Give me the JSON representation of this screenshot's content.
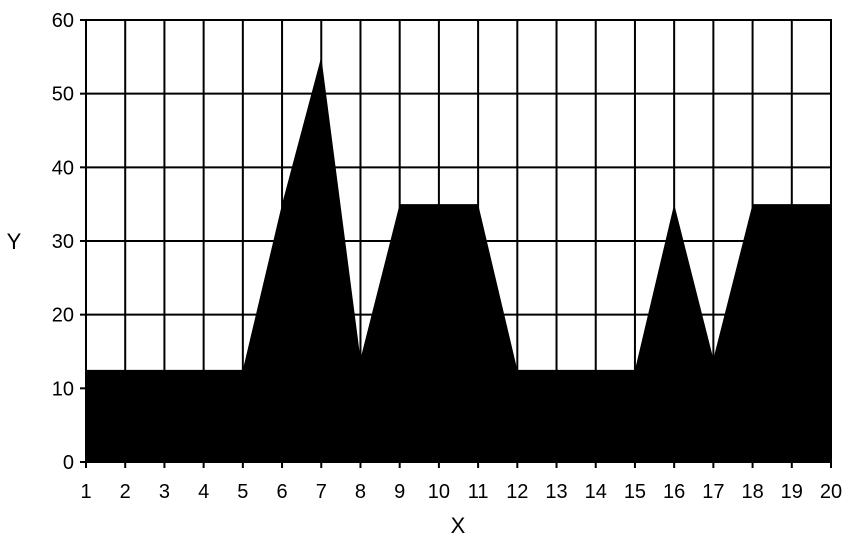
{
  "chart_data": {
    "type": "area",
    "title": "",
    "xlabel": "X",
    "ylabel": "Y",
    "xlim": [
      1,
      20
    ],
    "ylim": [
      0,
      60
    ],
    "x_ticks": [
      1,
      2,
      3,
      4,
      5,
      6,
      7,
      8,
      9,
      10,
      11,
      12,
      13,
      14,
      15,
      16,
      17,
      18,
      19,
      20
    ],
    "y_ticks": [
      0,
      10,
      20,
      30,
      40,
      50,
      60
    ],
    "grid": true,
    "legend": "none",
    "fill_color": "#000000",
    "grid_color": "#000000",
    "series": [
      {
        "x": [
          1,
          2,
          3,
          4,
          5,
          6,
          7,
          8,
          9,
          10,
          11,
          12,
          13,
          14,
          15,
          16,
          17,
          18,
          19,
          20
        ],
        "values": [
          12.5,
          12.5,
          12.5,
          12.5,
          12.5,
          35,
          55,
          14,
          35,
          35,
          35,
          12.5,
          12.5,
          12.5,
          12.5,
          35,
          14,
          35,
          35,
          35
        ]
      }
    ]
  }
}
